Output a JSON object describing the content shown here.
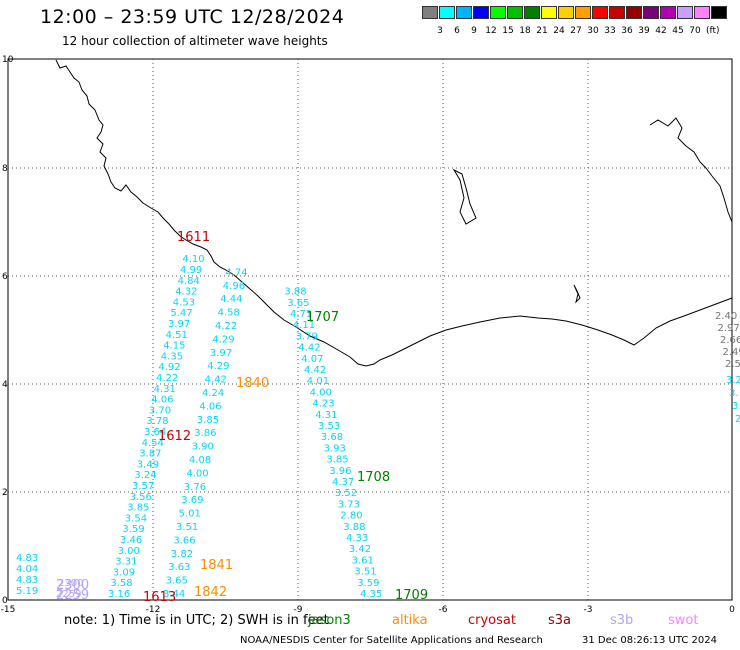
{
  "header": {
    "title": "12:00 – 23:59 UTC 12/28/2024",
    "subtitle": "12 hour collection of altimeter wave heights"
  },
  "scale": {
    "labels": [
      "3",
      "6",
      "9",
      "12",
      "15",
      "18",
      "21",
      "24",
      "27",
      "30",
      "33",
      "36",
      "39",
      "42",
      "45",
      "70"
    ],
    "unit": "(ft)",
    "colors": [
      "#7f7f7f",
      "#00ffff",
      "#00b4ff",
      "#0000ff",
      "#00ff00",
      "#00c000",
      "#008000",
      "#ffff00",
      "#ffd000",
      "#ffa000",
      "#ff0000",
      "#c80000",
      "#960000",
      "#780078",
      "#b400b4",
      "#c8a0ff",
      "#ff80ff",
      "#000000"
    ]
  },
  "map": {
    "x_ticks": [
      "-15",
      "-12",
      "-9",
      "-6",
      "-3",
      "0"
    ],
    "y_ticks": [
      "0",
      "2",
      "4",
      "6",
      "8",
      "10"
    ]
  },
  "passes": [
    {
      "time": "1611",
      "color": "#cc0000"
    },
    {
      "time": "1612",
      "color": "#cc0000"
    },
    {
      "time": "1613",
      "color": "#cc0000"
    },
    {
      "time": "1707",
      "color": "#008000"
    },
    {
      "time": "1708",
      "color": "#008000"
    },
    {
      "time": "1709",
      "color": "#008000"
    },
    {
      "time": "1840",
      "color": "#ff8c00"
    },
    {
      "time": "1841",
      "color": "#ff8c00"
    },
    {
      "time": "1842",
      "color": "#ff8c00"
    },
    {
      "time": "2259",
      "color": "#b4a0ff"
    },
    {
      "time": "2300",
      "color": "#b4a0ff"
    }
  ],
  "tracks": [
    {
      "color": "#00d8ff",
      "values": [
        "5.19",
        "4.83",
        "4.04",
        "4.83"
      ]
    },
    {
      "color": "#b4a0ff",
      "values": [
        "2259",
        "2300"
      ]
    },
    {
      "color": "#00d8ff",
      "values": [
        "3.16",
        "3.58",
        "3.09",
        "3.31",
        "3.00",
        "3.46",
        "3.59",
        "3.54",
        "3.85",
        "3.56",
        "3.57",
        "3.24",
        "3.49",
        "3.87",
        "4.54",
        "3.64",
        "3.78",
        "3.70",
        "4.06",
        "4.31",
        "4.22",
        "4.92",
        "4.35",
        "4.15",
        "4.51",
        "3.97",
        "5.47",
        "4.53",
        "4.32",
        "4.84",
        "4.99",
        "4.10"
      ]
    },
    {
      "color": "#00d8ff",
      "values": [
        "3.44",
        "3.65",
        "3.63",
        "3.82",
        "3.66",
        "3.51",
        "5.01",
        "3.69",
        "3.76",
        "4.00",
        "4.08",
        "3.90",
        "3.86",
        "3.85",
        "4.06",
        "4.24",
        "4.42",
        "4.29",
        "3.97",
        "4.29",
        "4.22",
        "4.58",
        "4.44",
        "4.96",
        "4.74"
      ]
    },
    {
      "color": "#00d8ff",
      "values": [
        "4.35",
        "3.59",
        "3.51",
        "3.61",
        "3.42",
        "4.33",
        "3.88",
        "2.80",
        "3.73",
        "3.52",
        "4.37",
        "3.96",
        "3.85",
        "3.93",
        "3.68",
        "3.53",
        "4.31",
        "4.23",
        "4.00",
        "4.01",
        "4.42",
        "4.07",
        "4.42",
        "3.79",
        "4.11",
        "4.71",
        "3.65",
        "3.88"
      ]
    },
    {
      "color": "#777777",
      "values": [
        "2.40",
        "2.97",
        "2.66",
        "2.49",
        "2.5"
      ]
    },
    {
      "color": "#00d8ff",
      "values": [
        "3.2",
        "3.",
        "3.",
        "2."
      ]
    }
  ],
  "satellites": [
    {
      "name": "jason3",
      "color": "#008000"
    },
    {
      "name": "altika",
      "color": "#ff8c00"
    },
    {
      "name": "cryosat",
      "color": "#cc0000"
    },
    {
      "name": "s3a",
      "color": "#8b0000"
    },
    {
      "name": "s3b",
      "color": "#b4a0ff"
    },
    {
      "name": "swot",
      "color": "#ff80ff"
    }
  ],
  "note": "note:  1) Time is in UTC; 2) SWH is in feet",
  "footer": {
    "credit": "NOAA/NESDIS Center for Satellite Applications and Research",
    "generated": "31 Dec 08:26:13 UTC 2024"
  }
}
